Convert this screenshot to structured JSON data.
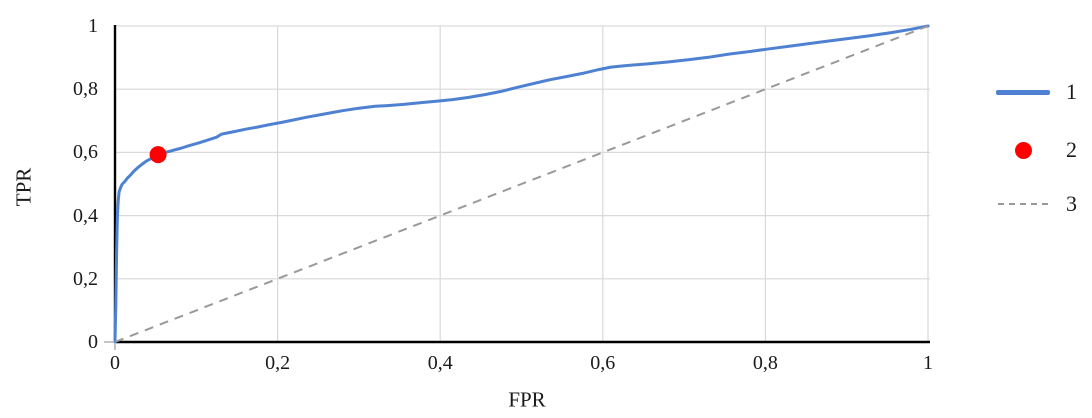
{
  "accent_colors": {
    "curve_blue": "#4f81d2",
    "marker_red": "#fe0000",
    "diagonal_gray": "#999999",
    "gridline_gray": "#d9d9d9",
    "axis_black": "#000000",
    "text_color": "#1a1a1a"
  },
  "axis_titles": {
    "x": "FPR",
    "y": "TPR"
  },
  "legend": {
    "position": "right",
    "items": [
      {
        "label": "1",
        "swatch": "line-swatch-blue"
      },
      {
        "label": "2",
        "swatch": "dot-swatch-red"
      },
      {
        "label": "3",
        "swatch": "dash-swatch-gray"
      }
    ]
  },
  "chart_data": {
    "type": "line",
    "title": "",
    "xlabel": "FPR",
    "ylabel": "TPR",
    "xlim": [
      0,
      1
    ],
    "ylim": [
      0,
      1
    ],
    "grid": true,
    "x_ticks": [
      0,
      0.2,
      0.4,
      0.6,
      0.8,
      1
    ],
    "y_ticks": [
      0,
      0.2,
      0.4,
      0.6,
      0.8,
      1
    ],
    "x_tick_labels": [
      "0",
      "0,2",
      "0,4",
      "0,6",
      "0,8",
      "1"
    ],
    "y_tick_labels": [
      "0",
      "0,2",
      "0,4",
      "0,6",
      "0,8",
      "1"
    ],
    "decimal_separator": ",",
    "legend_position": "right",
    "series": [
      {
        "name": "1",
        "kind": "line",
        "color": "#4f81d2",
        "width": 3,
        "points": [
          [
            0,
            0
          ],
          [
            0.001,
            0.12
          ],
          [
            0.002,
            0.28
          ],
          [
            0.003,
            0.4
          ],
          [
            0.004,
            0.45
          ],
          [
            0.005,
            0.475
          ],
          [
            0.007,
            0.49
          ],
          [
            0.009,
            0.5
          ],
          [
            0.012,
            0.508
          ],
          [
            0.015,
            0.518
          ],
          [
            0.019,
            0.528
          ],
          [
            0.023,
            0.54
          ],
          [
            0.028,
            0.552
          ],
          [
            0.033,
            0.562
          ],
          [
            0.039,
            0.573
          ],
          [
            0.046,
            0.583
          ],
          [
            0.053,
            0.593
          ],
          [
            0.062,
            0.6
          ],
          [
            0.072,
            0.607
          ],
          [
            0.082,
            0.614
          ],
          [
            0.092,
            0.622
          ],
          [
            0.103,
            0.63
          ],
          [
            0.115,
            0.64
          ],
          [
            0.125,
            0.648
          ],
          [
            0.131,
            0.658
          ],
          [
            0.145,
            0.665
          ],
          [
            0.16,
            0.673
          ],
          [
            0.175,
            0.68
          ],
          [
            0.19,
            0.688
          ],
          [
            0.205,
            0.695
          ],
          [
            0.22,
            0.703
          ],
          [
            0.235,
            0.711
          ],
          [
            0.25,
            0.718
          ],
          [
            0.265,
            0.725
          ],
          [
            0.28,
            0.732
          ],
          [
            0.3,
            0.74
          ],
          [
            0.32,
            0.746
          ],
          [
            0.335,
            0.748
          ],
          [
            0.355,
            0.752
          ],
          [
            0.375,
            0.757
          ],
          [
            0.395,
            0.762
          ],
          [
            0.415,
            0.767
          ],
          [
            0.435,
            0.774
          ],
          [
            0.455,
            0.783
          ],
          [
            0.475,
            0.793
          ],
          [
            0.495,
            0.806
          ],
          [
            0.515,
            0.818
          ],
          [
            0.535,
            0.83
          ],
          [
            0.555,
            0.84
          ],
          [
            0.575,
            0.85
          ],
          [
            0.595,
            0.862
          ],
          [
            0.61,
            0.87
          ],
          [
            0.63,
            0.875
          ],
          [
            0.655,
            0.88
          ],
          [
            0.68,
            0.886
          ],
          [
            0.705,
            0.893
          ],
          [
            0.73,
            0.901
          ],
          [
            0.755,
            0.911
          ],
          [
            0.78,
            0.919
          ],
          [
            0.805,
            0.928
          ],
          [
            0.835,
            0.938
          ],
          [
            0.865,
            0.948
          ],
          [
            0.895,
            0.958
          ],
          [
            0.925,
            0.968
          ],
          [
            0.955,
            0.979
          ],
          [
            0.98,
            0.99
          ],
          [
            1,
            1
          ]
        ]
      },
      {
        "name": "2",
        "kind": "point",
        "color": "#fe0000",
        "radius": 8.5,
        "points": [
          [
            0.053,
            0.593
          ]
        ]
      },
      {
        "name": "3",
        "kind": "dashed-line",
        "color": "#999999",
        "width": 2,
        "dash": "9 7",
        "points": [
          [
            0,
            0
          ],
          [
            1,
            1
          ]
        ]
      }
    ]
  }
}
